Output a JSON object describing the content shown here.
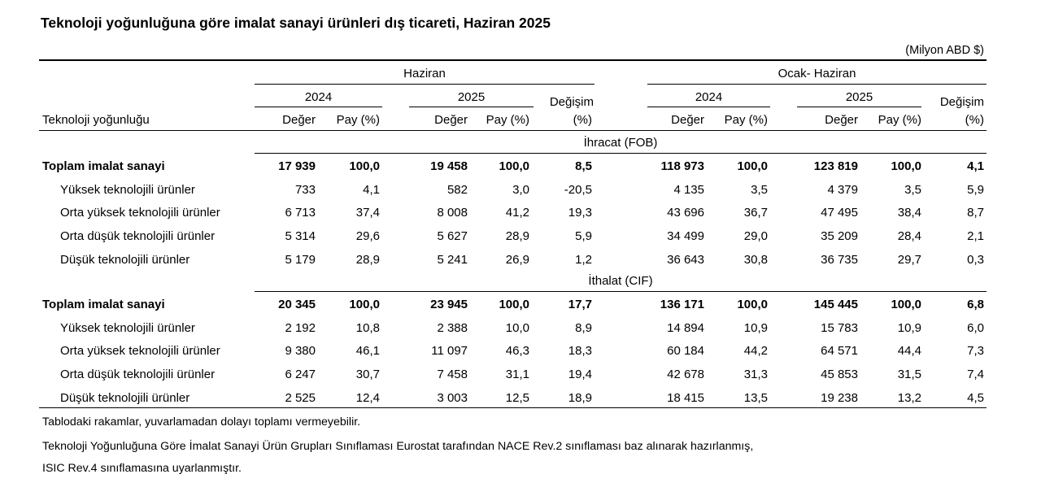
{
  "title": "Teknoloji yoğunluğuna göre imalat sanayi ürünleri dış ticareti, Haziran 2025",
  "unit": "(Milyon ABD $)",
  "header": {
    "row_label": "Teknoloji yoğunluğu",
    "groups": [
      "Haziran",
      "Ocak- Haziran"
    ],
    "years": [
      "2024",
      "2025"
    ],
    "change_top": "Değişim",
    "change_bottom": "(%)",
    "value": "Değer",
    "share": "Pay (%)"
  },
  "sections": [
    {
      "title": "İhracat (FOB)",
      "rows": [
        {
          "label": "Toplam imalat sanayi",
          "bold": true,
          "values": [
            "17 939",
            "100,0",
            "19 458",
            "100,0",
            "8,5",
            "118 973",
            "100,0",
            "123 819",
            "100,0",
            "4,1"
          ]
        },
        {
          "label": "Yüksek teknolojili ürünler",
          "values": [
            "733",
            "4,1",
            "582",
            "3,0",
            "-20,5",
            "4 135",
            "3,5",
            "4 379",
            "3,5",
            "5,9"
          ]
        },
        {
          "label": "Orta yüksek teknolojili ürünler",
          "values": [
            "6 713",
            "37,4",
            "8 008",
            "41,2",
            "19,3",
            "43 696",
            "36,7",
            "47 495",
            "38,4",
            "8,7"
          ]
        },
        {
          "label": "Orta düşük teknolojili ürünler",
          "values": [
            "5 314",
            "29,6",
            "5 627",
            "28,9",
            "5,9",
            "34 499",
            "29,0",
            "35 209",
            "28,4",
            "2,1"
          ]
        },
        {
          "label": "Düşük teknolojili ürünler",
          "values": [
            "5 179",
            "28,9",
            "5 241",
            "26,9",
            "1,2",
            "36 643",
            "30,8",
            "36 735",
            "29,7",
            "0,3"
          ]
        }
      ]
    },
    {
      "title": "İthalat (CIF)",
      "rows": [
        {
          "label": "Toplam imalat sanayi",
          "bold": true,
          "values": [
            "20 345",
            "100,0",
            "23 945",
            "100,0",
            "17,7",
            "136 171",
            "100,0",
            "145 445",
            "100,0",
            "6,8"
          ]
        },
        {
          "label": "Yüksek teknolojili ürünler",
          "values": [
            "2 192",
            "10,8",
            "2 388",
            "10,0",
            "8,9",
            "14 894",
            "10,9",
            "15 783",
            "10,9",
            "6,0"
          ]
        },
        {
          "label": "Orta yüksek teknolojili ürünler",
          "values": [
            "9 380",
            "46,1",
            "11 097",
            "46,3",
            "18,3",
            "60 184",
            "44,2",
            "64 571",
            "44,4",
            "7,3"
          ]
        },
        {
          "label": "Orta düşük teknolojili ürünler",
          "values": [
            "6 247",
            "30,7",
            "7 458",
            "31,1",
            "19,4",
            "42 678",
            "31,3",
            "45 853",
            "31,5",
            "7,4"
          ]
        },
        {
          "label": "Düşük teknolojili ürünler",
          "values": [
            "2 525",
            "12,4",
            "3 003",
            "12,5",
            "18,9",
            "18 415",
            "13,5",
            "19 238",
            "13,2",
            "4,5"
          ]
        }
      ]
    }
  ],
  "notes": [
    "Tablodaki rakamlar, yuvarlamadan dolayı toplamı vermeyebilir.",
    "Teknoloji Yoğunluğuna Göre İmalat Sanayi Ürün Grupları Sınıflaması Eurostat tarafından NACE Rev.2 sınıflaması baz alınarak hazırlanmış,",
    "ISIC Rev.4 sınıflamasına uyarlanmıştır."
  ]
}
